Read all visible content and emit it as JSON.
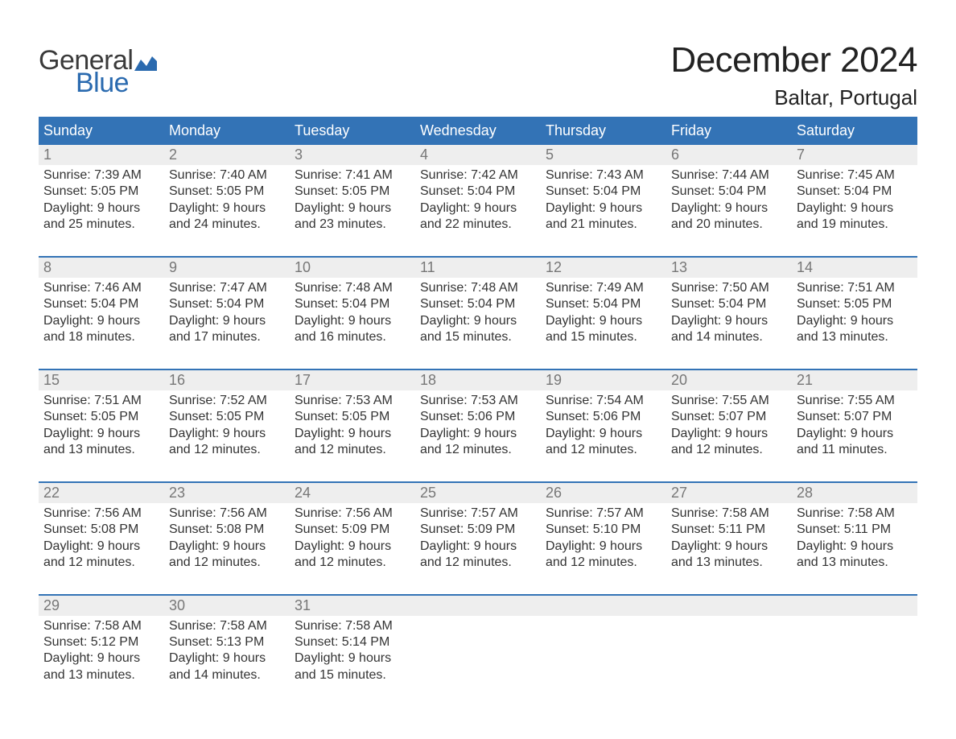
{
  "logo": {
    "text_top": "General",
    "text_bottom": "Blue",
    "top_color": "#3a3a3a",
    "bottom_color": "#2a6aaf",
    "flag_color": "#2a6aaf"
  },
  "title": "December 2024",
  "location": "Baltar, Portugal",
  "colors": {
    "header_bg": "#3373b6",
    "header_text": "#ffffff",
    "daynum_bg": "#eeeeee",
    "daynum_text": "#777777",
    "body_text": "#333333",
    "week_divider": "#3373b6",
    "page_bg": "#ffffff"
  },
  "typography": {
    "title_fontsize": 44,
    "location_fontsize": 26,
    "header_fontsize": 18,
    "daynum_fontsize": 18,
    "info_fontsize": 16,
    "font_family": "Arial"
  },
  "day_headers": [
    "Sunday",
    "Monday",
    "Tuesday",
    "Wednesday",
    "Thursday",
    "Friday",
    "Saturday"
  ],
  "weeks": [
    {
      "days": [
        {
          "num": "1",
          "sunrise": "Sunrise: 7:39 AM",
          "sunset": "Sunset: 5:05 PM",
          "d1": "Daylight: 9 hours",
          "d2": "and 25 minutes."
        },
        {
          "num": "2",
          "sunrise": "Sunrise: 7:40 AM",
          "sunset": "Sunset: 5:05 PM",
          "d1": "Daylight: 9 hours",
          "d2": "and 24 minutes."
        },
        {
          "num": "3",
          "sunrise": "Sunrise: 7:41 AM",
          "sunset": "Sunset: 5:05 PM",
          "d1": "Daylight: 9 hours",
          "d2": "and 23 minutes."
        },
        {
          "num": "4",
          "sunrise": "Sunrise: 7:42 AM",
          "sunset": "Sunset: 5:04 PM",
          "d1": "Daylight: 9 hours",
          "d2": "and 22 minutes."
        },
        {
          "num": "5",
          "sunrise": "Sunrise: 7:43 AM",
          "sunset": "Sunset: 5:04 PM",
          "d1": "Daylight: 9 hours",
          "d2": "and 21 minutes."
        },
        {
          "num": "6",
          "sunrise": "Sunrise: 7:44 AM",
          "sunset": "Sunset: 5:04 PM",
          "d1": "Daylight: 9 hours",
          "d2": "and 20 minutes."
        },
        {
          "num": "7",
          "sunrise": "Sunrise: 7:45 AM",
          "sunset": "Sunset: 5:04 PM",
          "d1": "Daylight: 9 hours",
          "d2": "and 19 minutes."
        }
      ]
    },
    {
      "days": [
        {
          "num": "8",
          "sunrise": "Sunrise: 7:46 AM",
          "sunset": "Sunset: 5:04 PM",
          "d1": "Daylight: 9 hours",
          "d2": "and 18 minutes."
        },
        {
          "num": "9",
          "sunrise": "Sunrise: 7:47 AM",
          "sunset": "Sunset: 5:04 PM",
          "d1": "Daylight: 9 hours",
          "d2": "and 17 minutes."
        },
        {
          "num": "10",
          "sunrise": "Sunrise: 7:48 AM",
          "sunset": "Sunset: 5:04 PM",
          "d1": "Daylight: 9 hours",
          "d2": "and 16 minutes."
        },
        {
          "num": "11",
          "sunrise": "Sunrise: 7:48 AM",
          "sunset": "Sunset: 5:04 PM",
          "d1": "Daylight: 9 hours",
          "d2": "and 15 minutes."
        },
        {
          "num": "12",
          "sunrise": "Sunrise: 7:49 AM",
          "sunset": "Sunset: 5:04 PM",
          "d1": "Daylight: 9 hours",
          "d2": "and 15 minutes."
        },
        {
          "num": "13",
          "sunrise": "Sunrise: 7:50 AM",
          "sunset": "Sunset: 5:04 PM",
          "d1": "Daylight: 9 hours",
          "d2": "and 14 minutes."
        },
        {
          "num": "14",
          "sunrise": "Sunrise: 7:51 AM",
          "sunset": "Sunset: 5:05 PM",
          "d1": "Daylight: 9 hours",
          "d2": "and 13 minutes."
        }
      ]
    },
    {
      "days": [
        {
          "num": "15",
          "sunrise": "Sunrise: 7:51 AM",
          "sunset": "Sunset: 5:05 PM",
          "d1": "Daylight: 9 hours",
          "d2": "and 13 minutes."
        },
        {
          "num": "16",
          "sunrise": "Sunrise: 7:52 AM",
          "sunset": "Sunset: 5:05 PM",
          "d1": "Daylight: 9 hours",
          "d2": "and 12 minutes."
        },
        {
          "num": "17",
          "sunrise": "Sunrise: 7:53 AM",
          "sunset": "Sunset: 5:05 PM",
          "d1": "Daylight: 9 hours",
          "d2": "and 12 minutes."
        },
        {
          "num": "18",
          "sunrise": "Sunrise: 7:53 AM",
          "sunset": "Sunset: 5:06 PM",
          "d1": "Daylight: 9 hours",
          "d2": "and 12 minutes."
        },
        {
          "num": "19",
          "sunrise": "Sunrise: 7:54 AM",
          "sunset": "Sunset: 5:06 PM",
          "d1": "Daylight: 9 hours",
          "d2": "and 12 minutes."
        },
        {
          "num": "20",
          "sunrise": "Sunrise: 7:55 AM",
          "sunset": "Sunset: 5:07 PM",
          "d1": "Daylight: 9 hours",
          "d2": "and 12 minutes."
        },
        {
          "num": "21",
          "sunrise": "Sunrise: 7:55 AM",
          "sunset": "Sunset: 5:07 PM",
          "d1": "Daylight: 9 hours",
          "d2": "and 11 minutes."
        }
      ]
    },
    {
      "days": [
        {
          "num": "22",
          "sunrise": "Sunrise: 7:56 AM",
          "sunset": "Sunset: 5:08 PM",
          "d1": "Daylight: 9 hours",
          "d2": "and 12 minutes."
        },
        {
          "num": "23",
          "sunrise": "Sunrise: 7:56 AM",
          "sunset": "Sunset: 5:08 PM",
          "d1": "Daylight: 9 hours",
          "d2": "and 12 minutes."
        },
        {
          "num": "24",
          "sunrise": "Sunrise: 7:56 AM",
          "sunset": "Sunset: 5:09 PM",
          "d1": "Daylight: 9 hours",
          "d2": "and 12 minutes."
        },
        {
          "num": "25",
          "sunrise": "Sunrise: 7:57 AM",
          "sunset": "Sunset: 5:09 PM",
          "d1": "Daylight: 9 hours",
          "d2": "and 12 minutes."
        },
        {
          "num": "26",
          "sunrise": "Sunrise: 7:57 AM",
          "sunset": "Sunset: 5:10 PM",
          "d1": "Daylight: 9 hours",
          "d2": "and 12 minutes."
        },
        {
          "num": "27",
          "sunrise": "Sunrise: 7:58 AM",
          "sunset": "Sunset: 5:11 PM",
          "d1": "Daylight: 9 hours",
          "d2": "and 13 minutes."
        },
        {
          "num": "28",
          "sunrise": "Sunrise: 7:58 AM",
          "sunset": "Sunset: 5:11 PM",
          "d1": "Daylight: 9 hours",
          "d2": "and 13 minutes."
        }
      ]
    },
    {
      "days": [
        {
          "num": "29",
          "sunrise": "Sunrise: 7:58 AM",
          "sunset": "Sunset: 5:12 PM",
          "d1": "Daylight: 9 hours",
          "d2": "and 13 minutes."
        },
        {
          "num": "30",
          "sunrise": "Sunrise: 7:58 AM",
          "sunset": "Sunset: 5:13 PM",
          "d1": "Daylight: 9 hours",
          "d2": "and 14 minutes."
        },
        {
          "num": "31",
          "sunrise": "Sunrise: 7:58 AM",
          "sunset": "Sunset: 5:14 PM",
          "d1": "Daylight: 9 hours",
          "d2": "and 15 minutes."
        },
        {
          "num": "",
          "sunrise": "",
          "sunset": "",
          "d1": "",
          "d2": ""
        },
        {
          "num": "",
          "sunrise": "",
          "sunset": "",
          "d1": "",
          "d2": ""
        },
        {
          "num": "",
          "sunrise": "",
          "sunset": "",
          "d1": "",
          "d2": ""
        },
        {
          "num": "",
          "sunrise": "",
          "sunset": "",
          "d1": "",
          "d2": ""
        }
      ]
    }
  ]
}
